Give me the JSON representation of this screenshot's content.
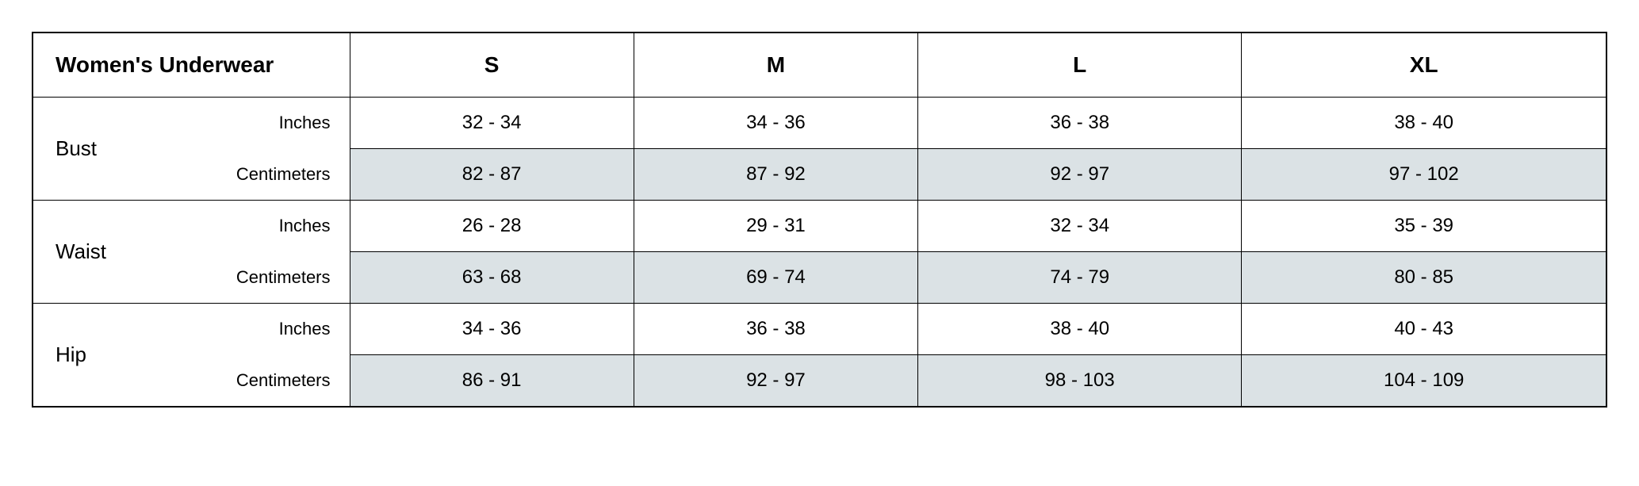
{
  "table": {
    "type": "table",
    "title": "Women's Underwear",
    "sizes": [
      "S",
      "M",
      "L",
      "XL"
    ],
    "unit_labels": {
      "inches": "Inches",
      "centimeters": "Centimeters"
    },
    "measurements": [
      {
        "name": "Bust",
        "inches": [
          "32 - 34",
          "34 - 36",
          "36 - 38",
          "38 - 40"
        ],
        "centimeters": [
          "82 - 87",
          "87 - 92",
          "92 - 97",
          "97 - 102"
        ]
      },
      {
        "name": "Waist",
        "inches": [
          "26 - 28",
          "29 - 31",
          "32 - 34",
          "35 - 39"
        ],
        "centimeters": [
          "63 - 68",
          "69 - 74",
          "74 - 79",
          "80 - 85"
        ]
      },
      {
        "name": "Hip",
        "inches": [
          "34 - 36",
          "36 - 38",
          "38 - 40",
          "40 - 43"
        ],
        "centimeters": [
          "86 - 91",
          "92 - 97",
          "98 - 103",
          "104 - 109"
        ]
      }
    ],
    "styling": {
      "border_color": "#000000",
      "shaded_row_bg": "#dbe2e5",
      "background_color": "#ffffff",
      "header_fontsize": 28,
      "header_fontweight": 700,
      "label_fontsize": 26,
      "unit_fontsize": 22,
      "value_fontsize": 24,
      "font_family": "Arial"
    }
  }
}
